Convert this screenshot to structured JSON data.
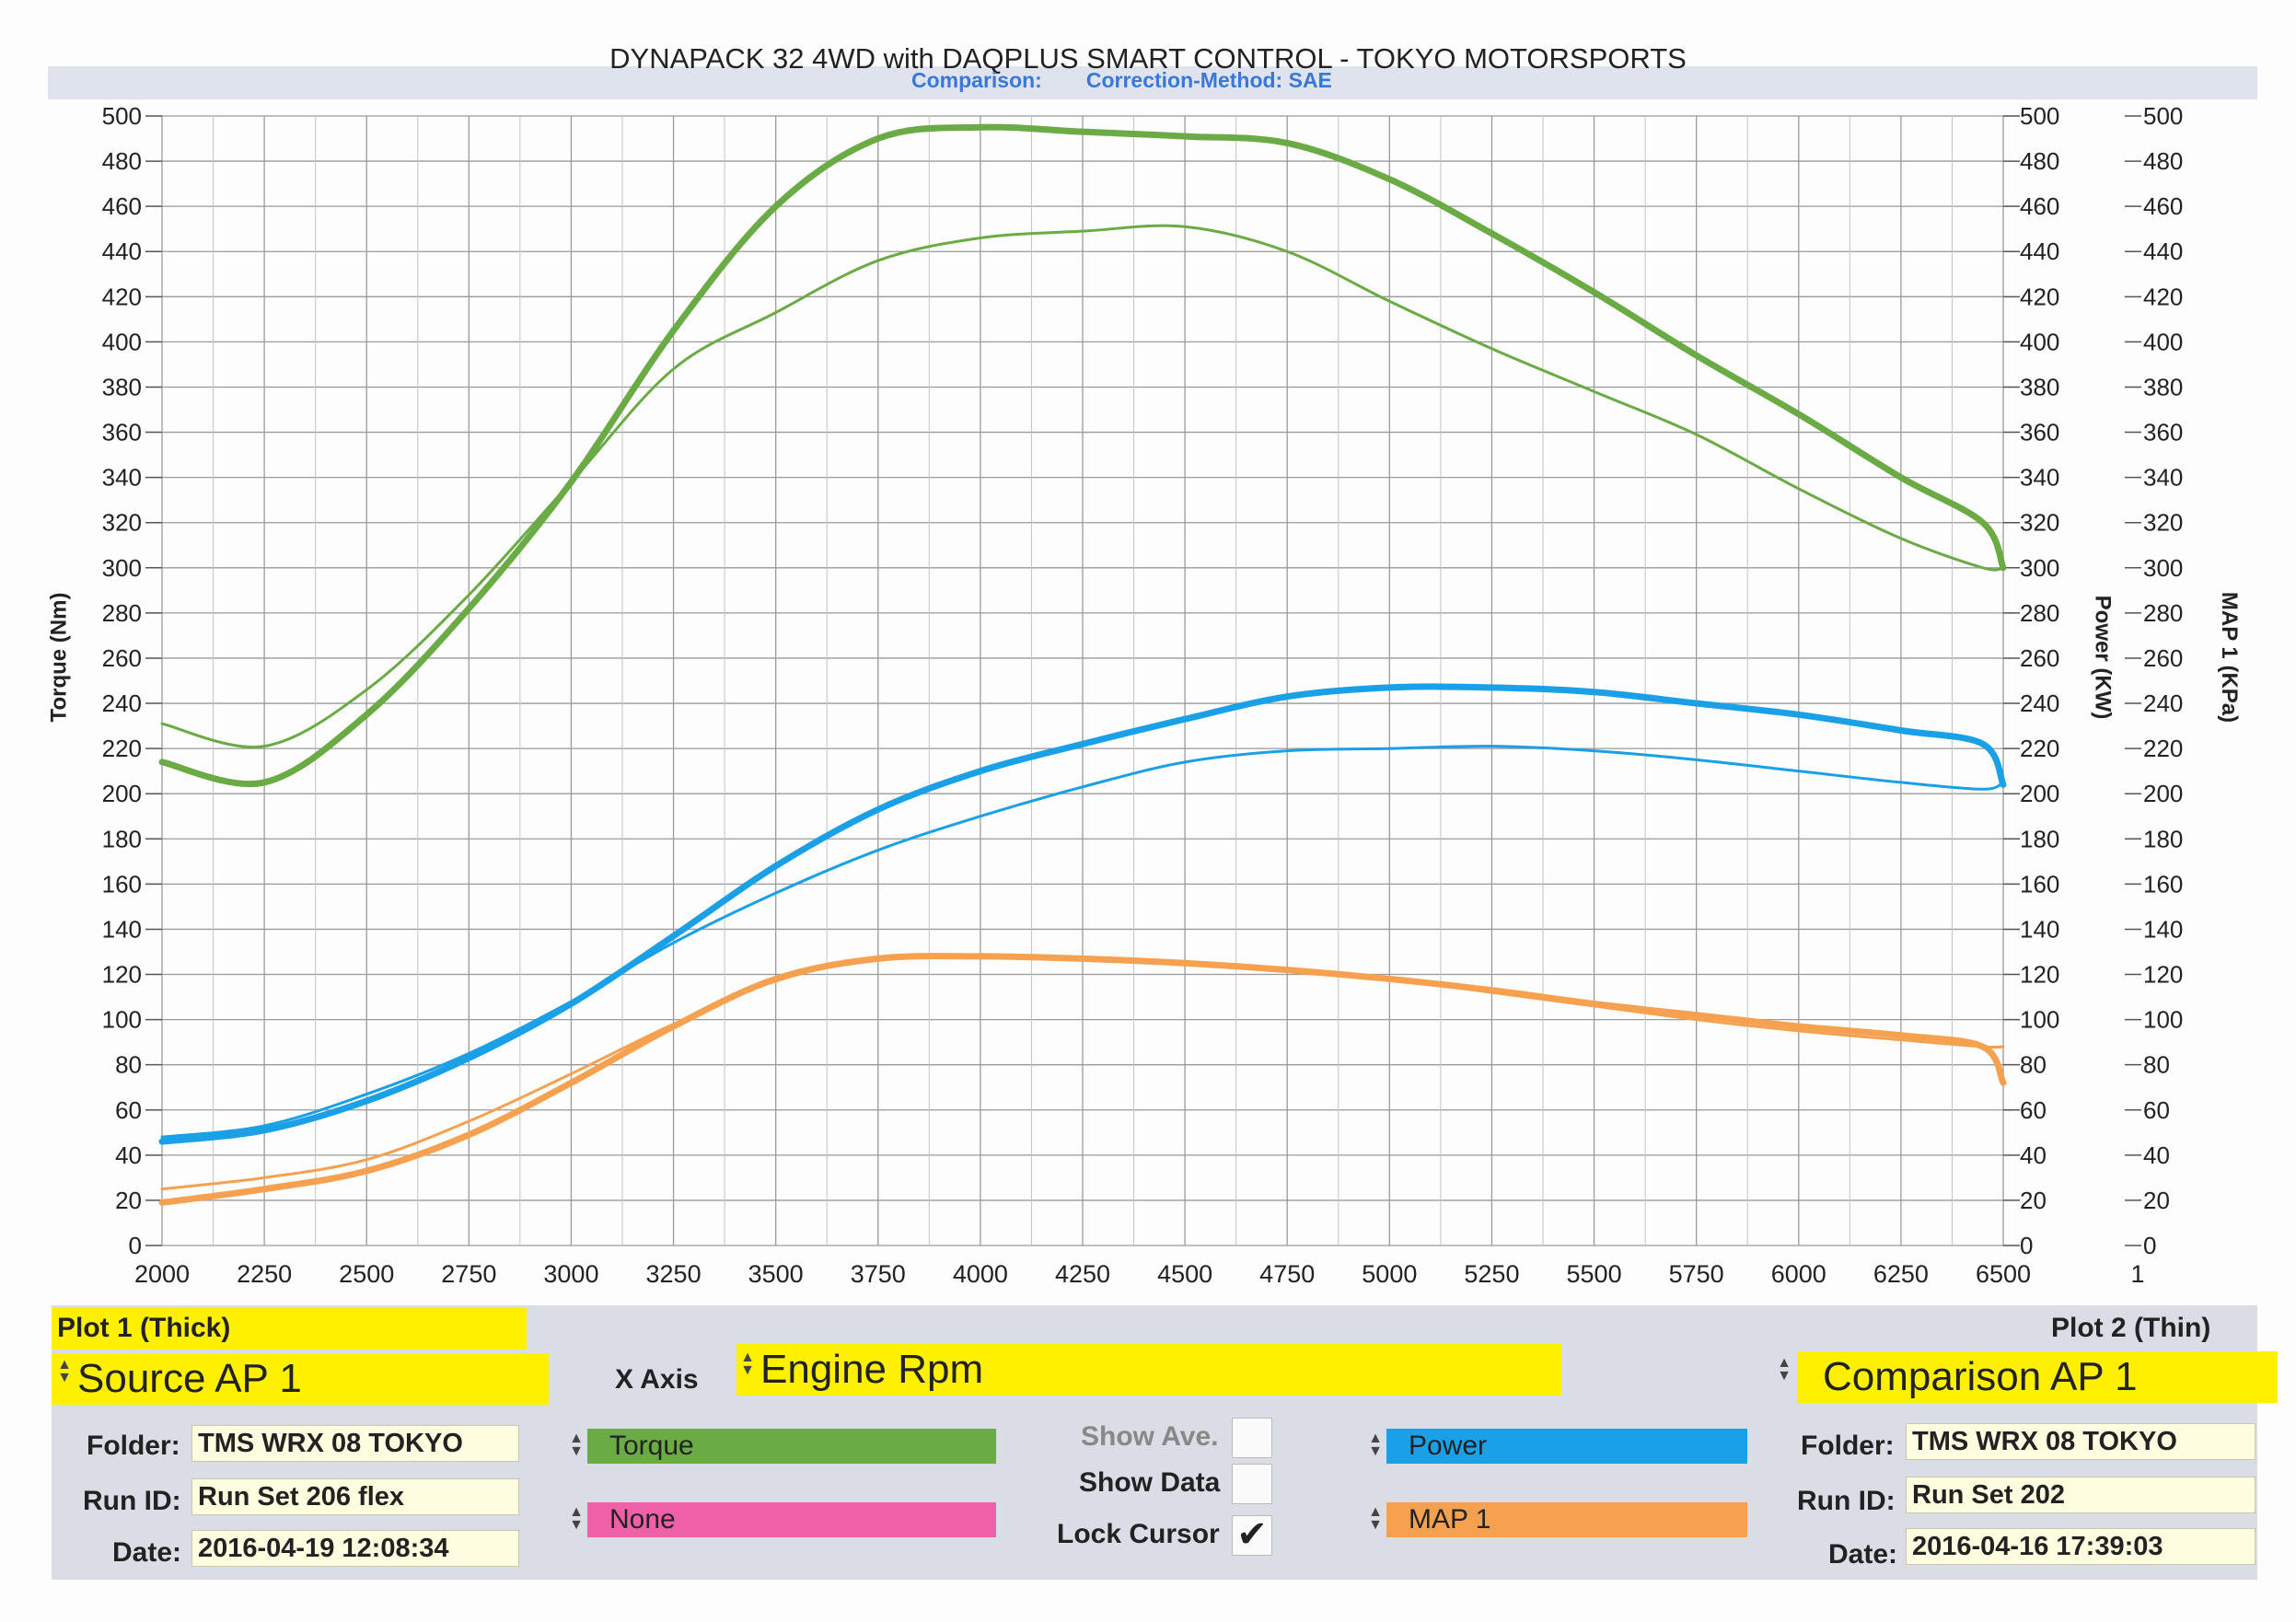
{
  "header": {
    "title": "DYNAPACK 32 4WD with DAQPLUS SMART CONTROL - TOKYO MOTORSPORTS",
    "comparison_label": "Comparison:",
    "correction_label": "Correction-Method: SAE"
  },
  "chart_data": {
    "type": "line",
    "x": [
      2000,
      2250,
      2500,
      2750,
      3000,
      3250,
      3500,
      3750,
      4000,
      4250,
      4500,
      4750,
      5000,
      5250,
      5500,
      5750,
      6000,
      6250,
      6450,
      6500
    ],
    "xlim": [
      2000,
      6500
    ],
    "x_ticks": [
      "2000",
      "2250",
      "2500",
      "2750",
      "3000",
      "3250",
      "3500",
      "3750",
      "4000",
      "4250",
      "4500",
      "4750",
      "5000",
      "5250",
      "5500",
      "5750",
      "6000",
      "6250",
      "6500"
    ],
    "ylim": [
      0,
      500
    ],
    "y_ticks": [
      "0",
      "20",
      "40",
      "60",
      "80",
      "100",
      "120",
      "140",
      "160",
      "180",
      "200",
      "220",
      "240",
      "260",
      "280",
      "300",
      "320",
      "340",
      "360",
      "380",
      "400",
      "420",
      "440",
      "460",
      "480",
      "500"
    ],
    "left_axis_label": "Torque (Nm)",
    "power_axis_label": "Power (KW)",
    "map_axis_label": "MAP 1 (KPa)",
    "map_axis_bottom_tick": "1",
    "grid": true,
    "series": [
      {
        "name": "Torque",
        "plot": "Plot 1 (Thick)",
        "color": "#6aab45",
        "width": 7,
        "values": [
          214,
          205,
          235,
          282,
          338,
          405,
          460,
          490,
          495,
          493,
          491,
          488,
          472,
          448,
          422,
          394,
          368,
          340,
          320,
          300
        ]
      },
      {
        "name": "Torque",
        "plot": "Plot 2 (Thin)",
        "color": "#6aab45",
        "width": 3,
        "values": [
          231,
          221,
          246,
          288,
          338,
          388,
          413,
          436,
          446,
          449,
          451,
          440,
          418,
          397,
          378,
          359,
          335,
          313,
          300,
          300
        ]
      },
      {
        "name": "Power",
        "plot": "Plot 1 (Thick)",
        "color": "#1aa0e6",
        "width": 7,
        "values": [
          46,
          51,
          64,
          83,
          107,
          137,
          168,
          193,
          210,
          222,
          233,
          243,
          247,
          247,
          245,
          240,
          235,
          228,
          222,
          204
        ]
      },
      {
        "name": "Power",
        "plot": "Plot 2 (Thin)",
        "color": "#1aa0e6",
        "width": 3,
        "values": [
          48,
          53,
          67,
          85,
          108,
          134,
          156,
          175,
          190,
          203,
          214,
          219,
          220,
          221,
          219,
          215,
          210,
          205,
          202,
          205
        ]
      },
      {
        "name": "MAP 1",
        "plot": "Plot 1 (Thick)",
        "color": "#f5a150",
        "width": 7,
        "values": [
          19,
          25,
          33,
          49,
          72,
          97,
          118,
          127,
          128,
          127,
          125,
          122,
          118,
          113,
          107,
          102,
          97,
          93,
          88,
          72
        ]
      },
      {
        "name": "MAP 1",
        "plot": "Plot 2 (Thin)",
        "color": "#f5a150",
        "width": 3,
        "values": [
          25,
          30,
          38,
          55,
          76,
          98,
          117,
          127,
          128,
          127,
          125,
          122,
          118,
          112,
          106,
          100,
          95,
          91,
          88,
          88
        ]
      }
    ]
  },
  "controls": {
    "plot1": {
      "title": "Plot 1 (Thick)",
      "source": "Source AP 1",
      "folder_label": "Folder:",
      "folder": "TMS WRX 08 TOKYO",
      "run_label": "Run ID:",
      "run": "Run Set 206 flex",
      "date_label": "Date:",
      "date": "2016-04-19 12:08:34"
    },
    "plot2": {
      "title": "Plot 2 (Thin)",
      "source": "Comparison AP 1",
      "folder_label": "Folder:",
      "folder": "TMS WRX 08 TOKYO",
      "run_label": "Run ID:",
      "run": "Run Set 202",
      "date_label": "Date:",
      "date": "2016-04-16 17:39:03"
    },
    "x_axis_label": "X Axis",
    "x_axis_value": "Engine Rpm",
    "sel_torque": "Torque",
    "sel_none": "None",
    "sel_power": "Power",
    "sel_map": "MAP 1",
    "show_ave": "Show Ave.",
    "show_data": "Show Data",
    "lock_cursor": "Lock Cursor",
    "lock_cursor_checked": true,
    "colors": {
      "torque": "#6aab45",
      "none": "#f060a8",
      "power": "#1aa0e6",
      "map": "#f5a150",
      "yellow": "#fff000"
    }
  }
}
